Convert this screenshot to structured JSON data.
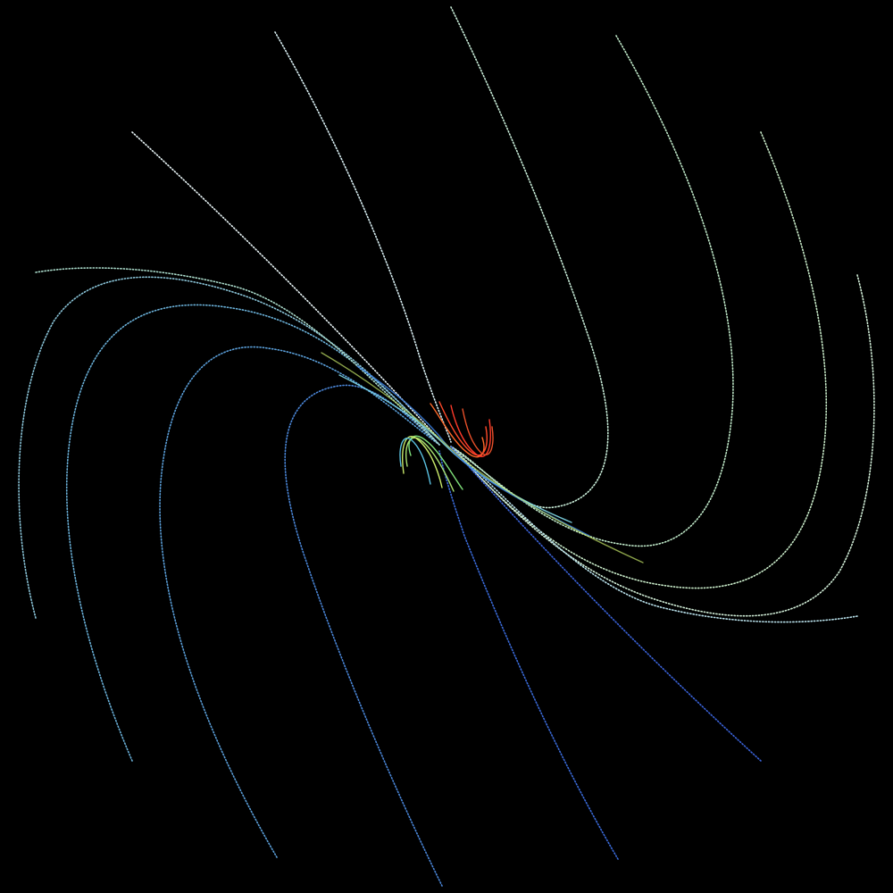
{
  "scene": {
    "background": "#000000",
    "palette": {
      "outer_white": "#ffffff",
      "pale_cyan": "#cfe9f0",
      "cyan": "#7fd8e8",
      "green": "#7fe07a",
      "yellow_green": "#c8e86a",
      "blue": "#3a7fe0",
      "deep_blue": "#2a4fd0",
      "orange": "#ff8a3a",
      "red": "#ff3a2a"
    }
  }
}
